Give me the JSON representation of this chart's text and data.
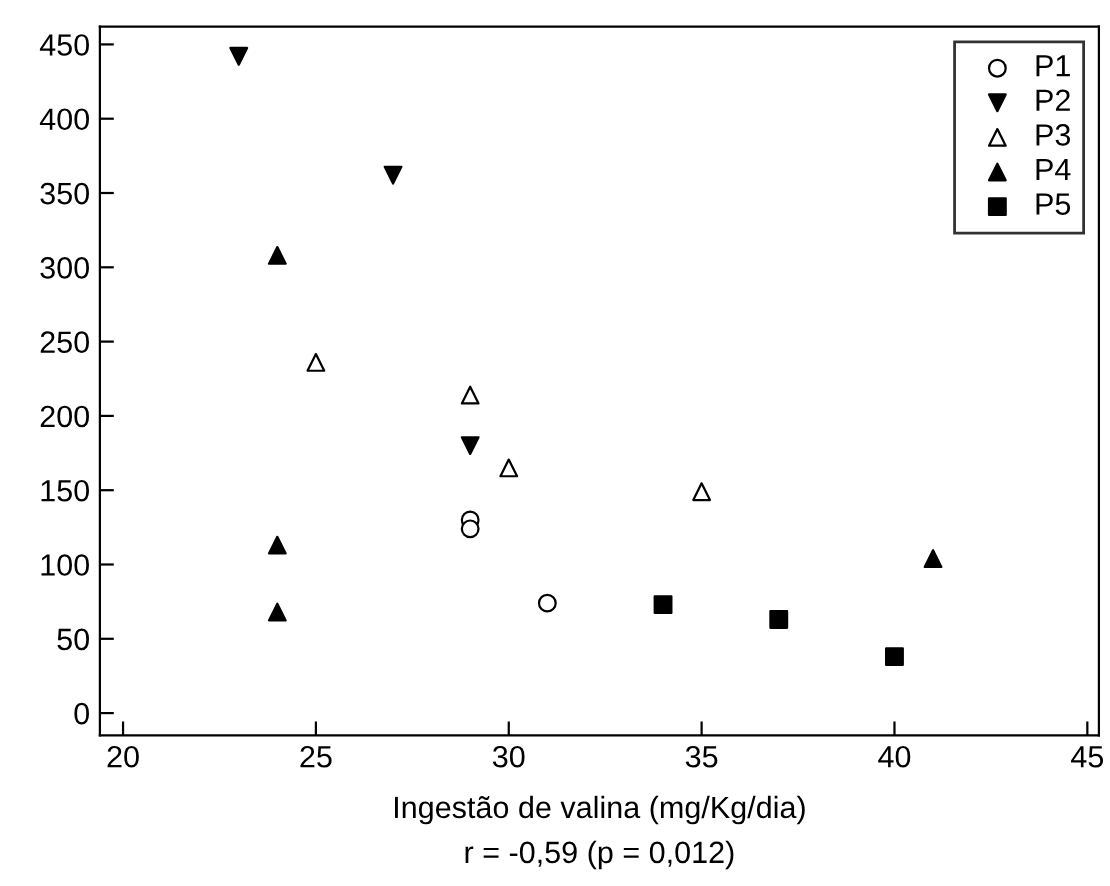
{
  "chart_data": {
    "type": "scatter",
    "xlabel": "Ingestão de valina (mg/Kg/dia)",
    "annotations": [
      "r = -0,59 (p = 0,012)"
    ],
    "xlim": [
      19.4,
      45.3
    ],
    "ylim": [
      -15,
      462
    ],
    "xticks": [
      20,
      25,
      30,
      35,
      40,
      45
    ],
    "yticks": [
      0,
      50,
      100,
      150,
      200,
      250,
      300,
      350,
      400,
      450
    ],
    "legend": "top right",
    "grid": false,
    "series": [
      {
        "name": "P1",
        "color": "#000000",
        "marker": "circle-open",
        "x": [
          29,
          29,
          31
        ],
        "values": [
          130,
          124,
          74
        ]
      },
      {
        "name": "P2",
        "color": "#000000",
        "marker": "triangle-down",
        "x": [
          23,
          27,
          29
        ],
        "values": [
          442,
          362,
          180
        ]
      },
      {
        "name": "P3",
        "color": "#000000",
        "marker": "triangle-open",
        "x": [
          25,
          29,
          30,
          35
        ],
        "values": [
          236,
          214,
          165,
          149
        ]
      },
      {
        "name": "P4",
        "color": "#000000",
        "marker": "triangle",
        "x": [
          24,
          24,
          24,
          41
        ],
        "values": [
          308,
          113,
          68,
          104
        ]
      },
      {
        "name": "P5",
        "color": "#000000",
        "marker": "square",
        "x": [
          34,
          37,
          40
        ],
        "values": [
          73,
          63,
          38
        ]
      }
    ]
  }
}
